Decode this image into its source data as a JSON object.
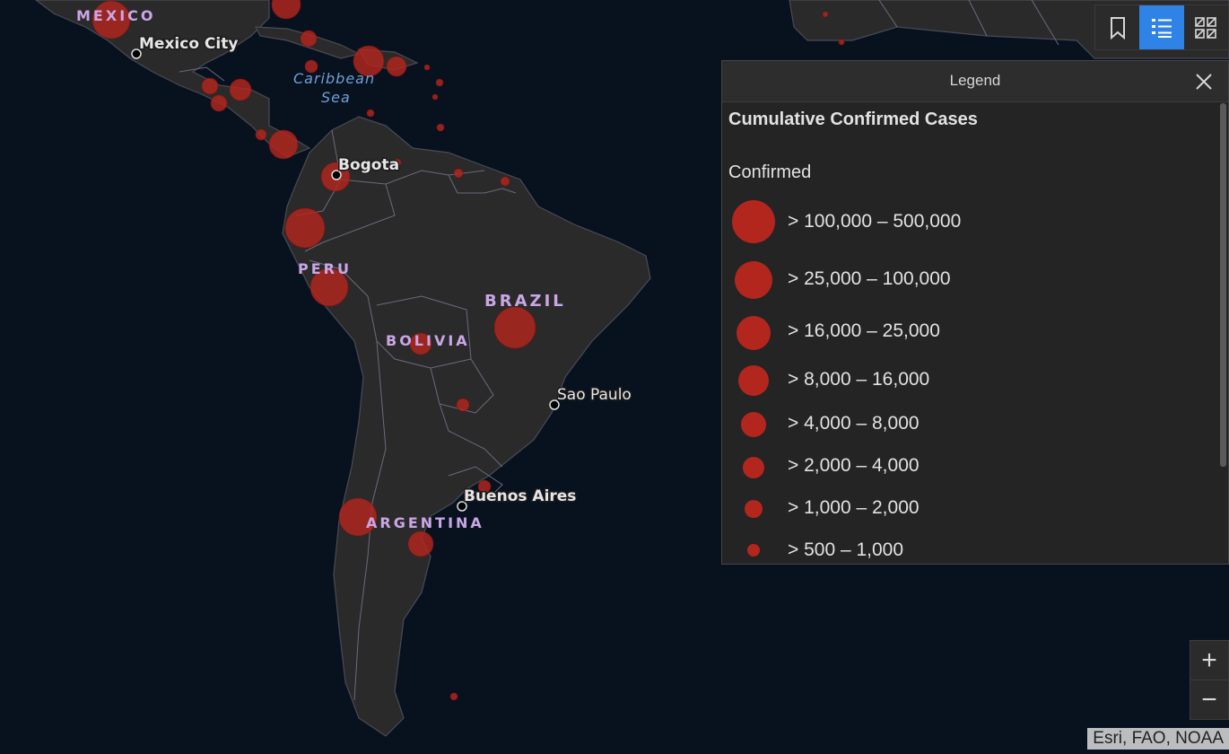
{
  "map": {
    "labels": {
      "mexico": "MEXICO",
      "mexico_city": "Mexico City",
      "caribbean_1": "Caribbean",
      "caribbean_2": "Sea",
      "bogota": "Bogota",
      "peru": "PERU",
      "brazil": "BRAZIL",
      "bolivia": "BOLIVIA",
      "sao_paulo": "Sao Paulo",
      "buenos_aires": "Buenos Aires",
      "argentina": "ARGENTINA"
    },
    "symbol_color": "#b3261e",
    "land_color": "#2b2a2a",
    "ocean_color": "#08121f"
  },
  "toolbar": {
    "buttons": [
      {
        "icon": "bookmark-icon",
        "active": false
      },
      {
        "icon": "legend-list-icon",
        "active": true
      },
      {
        "icon": "basemap-gallery-icon",
        "active": false
      }
    ],
    "active_color": "#2f82e6"
  },
  "legend": {
    "header": "Legend",
    "layer_title": "Cumulative Confirmed Cases",
    "field": "Confirmed",
    "classes": [
      {
        "label": "> 100,000 – 500,000"
      },
      {
        "label": "> 25,000 – 100,000"
      },
      {
        "label": "> 16,000 – 25,000"
      },
      {
        "label": "> 8,000 – 16,000"
      },
      {
        "label": "> 4,000 – 8,000"
      },
      {
        "label": "> 2,000 – 4,000"
      },
      {
        "label": "> 1,000 – 2,000"
      },
      {
        "label": "> 500 – 1,000"
      }
    ]
  },
  "zoom": {
    "in": "+",
    "out": "−"
  },
  "attribution": "Esri, FAO, NOAA"
}
